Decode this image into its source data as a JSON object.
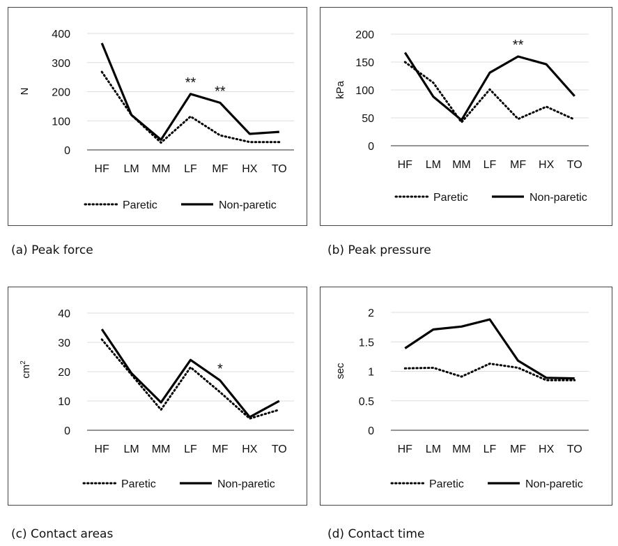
{
  "captions": [
    "(a) Peak force",
    "(b) Peak pressure",
    "(c) Contact areas",
    "(d) Contact time"
  ],
  "chart_data": [
    {
      "type": "line",
      "categories": [
        "HF",
        "LM",
        "MM",
        "LF",
        "MF",
        "HX",
        "TO"
      ],
      "ylabel": "N",
      "ylim": [
        0,
        400
      ],
      "yticks": [
        0,
        100,
        200,
        300,
        400
      ],
      "grid": true,
      "legend_position": "bottom",
      "series": [
        {
          "name": "Paretic",
          "style": "dotted",
          "values": [
            268,
            120,
            25,
            115,
            50,
            27,
            27
          ]
        },
        {
          "name": "Non-paretic",
          "style": "solid",
          "values": [
            367,
            120,
            35,
            192,
            162,
            55,
            62
          ]
        }
      ],
      "annotations": [
        {
          "category": "LF",
          "text": "**",
          "y": 192
        },
        {
          "category": "MF",
          "text": "**",
          "y": 162
        }
      ]
    },
    {
      "type": "line",
      "categories": [
        "HF",
        "LM",
        "MM",
        "LF",
        "MF",
        "HX",
        "TO"
      ],
      "ylabel": "kPa",
      "ylim": [
        0,
        200
      ],
      "yticks": [
        0,
        50,
        100,
        150,
        200
      ],
      "grid": true,
      "legend_position": "bottom",
      "series": [
        {
          "name": "Paretic",
          "style": "dotted",
          "values": [
            150,
            113,
            42,
            101,
            48,
            70,
            47
          ]
        },
        {
          "name": "Non-paretic",
          "style": "solid",
          "values": [
            167,
            88,
            46,
            131,
            160,
            146,
            89
          ]
        }
      ],
      "annotations": [
        {
          "category": "MF",
          "text": "**",
          "y": 160
        }
      ]
    },
    {
      "type": "line",
      "categories": [
        "HF",
        "LM",
        "MM",
        "LF",
        "MF",
        "HX",
        "TO"
      ],
      "ylabel": "cm",
      "ylabel_sup": "2",
      "ylim": [
        0,
        40
      ],
      "yticks": [
        0,
        10,
        20,
        30,
        40
      ],
      "grid": true,
      "legend_position": "bottom",
      "series": [
        {
          "name": "Paretic",
          "style": "dotted",
          "values": [
            31,
            19,
            7,
            21.5,
            13,
            4,
            7
          ]
        },
        {
          "name": "Non-paretic",
          "style": "solid",
          "values": [
            34.5,
            19.5,
            9.5,
            24,
            17,
            4.5,
            10
          ]
        }
      ],
      "annotations": [
        {
          "category": "MF",
          "text": "*",
          "y": 17
        }
      ]
    },
    {
      "type": "line",
      "categories": [
        "HF",
        "LM",
        "MM",
        "LF",
        "MF",
        "HX",
        "TO"
      ],
      "ylabel": "sec",
      "ylim": [
        0,
        2
      ],
      "yticks": [
        "0",
        "0.5",
        "1",
        "1.5",
        "2"
      ],
      "grid": true,
      "legend_position": "bottom",
      "series": [
        {
          "name": "Paretic",
          "style": "dotted",
          "values": [
            1.05,
            1.06,
            0.91,
            1.13,
            1.06,
            0.85,
            0.85
          ]
        },
        {
          "name": "Non-paretic",
          "style": "solid",
          "values": [
            1.39,
            1.71,
            1.76,
            1.88,
            1.18,
            0.89,
            0.88
          ]
        }
      ],
      "annotations": []
    }
  ]
}
